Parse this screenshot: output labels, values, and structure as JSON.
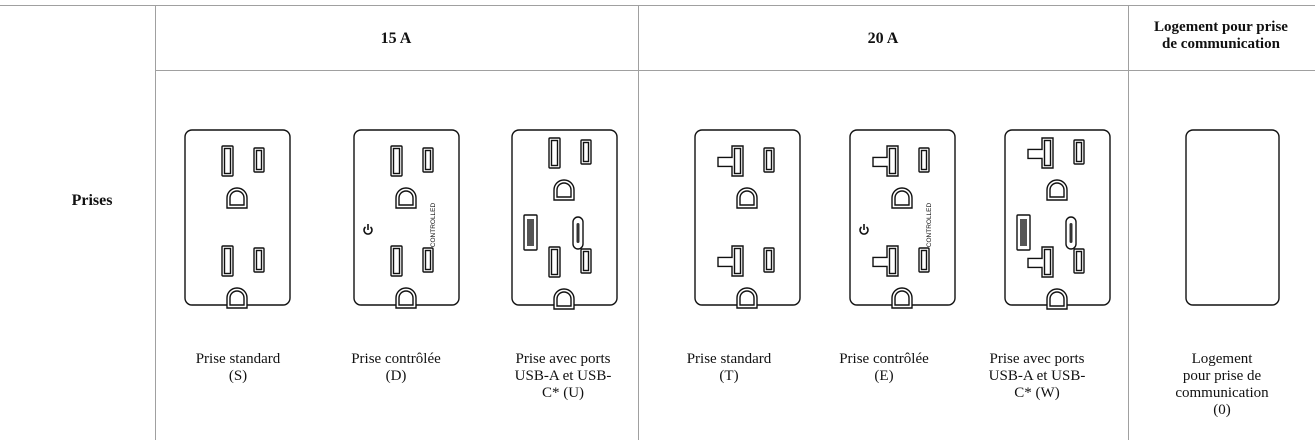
{
  "table": {
    "row_label": "Prises",
    "columns": [
      {
        "label": "15 A"
      },
      {
        "label": "20 A"
      },
      {
        "label_lines": [
          "Logement pour prise",
          "de communication"
        ]
      }
    ],
    "items": [
      {
        "label_lines": [
          "Prise standard",
          "(S)"
        ]
      },
      {
        "label_lines": [
          "Prise contrôlée",
          "(D)"
        ],
        "device_text": "CONTROLLED"
      },
      {
        "label_lines": [
          "Prise avec ports",
          "USB-A et USB-",
          "C* (U)"
        ]
      },
      {
        "label_lines": [
          "Prise standard",
          "(T)"
        ]
      },
      {
        "label_lines": [
          "Prise contrôlée",
          "(E)"
        ],
        "device_text": "CONTROLLED"
      },
      {
        "label_lines": [
          "Prise avec ports",
          "USB-A et USB-",
          "C* (W)"
        ]
      },
      {
        "label_lines": [
          "Logement",
          "pour prise de",
          "communication",
          "(0)"
        ]
      }
    ]
  }
}
